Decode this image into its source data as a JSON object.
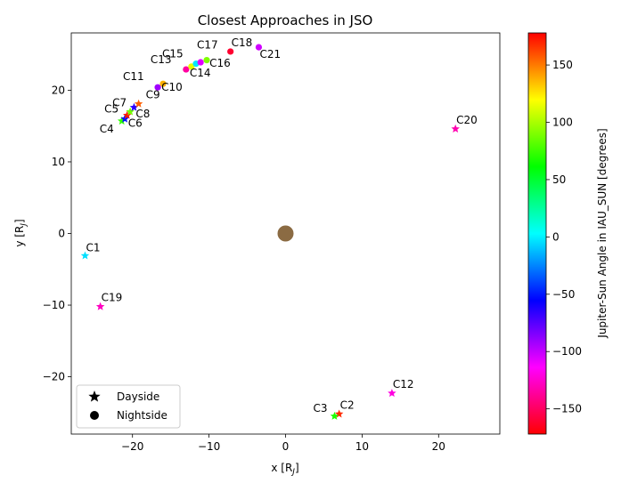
{
  "chart_data": {
    "type": "scatter",
    "title": "Closest Approaches in JSO",
    "xlabel_main": "x [R",
    "xlabel_sub": "J",
    "xlabel_end": "]",
    "ylabel_main": "y [R",
    "ylabel_sub": "J",
    "ylabel_end": "]",
    "xlim": [
      -28,
      28
    ],
    "ylim": [
      -28,
      28
    ],
    "xticks": [
      -20,
      -10,
      0,
      10,
      20
    ],
    "yticks": [
      -20,
      -10,
      0,
      10,
      20
    ],
    "grid": false,
    "legend": {
      "placement": "lower-left",
      "entries": [
        {
          "marker": "star",
          "label": "Dayside"
        },
        {
          "marker": "circle",
          "label": "Nightside"
        }
      ]
    },
    "colorbar": {
      "label": "Jupiter-Sun Angle in IAU_SUN [degrees]",
      "range": [
        -172,
        178
      ],
      "ticks": [
        -150,
        -100,
        -50,
        0,
        50,
        100,
        150
      ],
      "colormap": "hsv"
    },
    "jupiter": {
      "x": 0,
      "y": 0,
      "color": "#8B6B43"
    },
    "points": [
      {
        "label": "C1",
        "x": -26.2,
        "y": -3.1,
        "marker": "star",
        "angle": -5,
        "color": "#00e0ff"
      },
      {
        "label": "C2",
        "x": 7.0,
        "y": -25.2,
        "marker": "star",
        "angle": 170,
        "color": "#ff2a00"
      },
      {
        "label": "C3",
        "x": 6.4,
        "y": -25.5,
        "marker": "star",
        "angle": 60,
        "color": "#1aff00"
      },
      {
        "label": "C4",
        "x": -21.4,
        "y": 15.7,
        "marker": "star",
        "angle": 70,
        "color": "#30ff00"
      },
      {
        "label": "C5",
        "x": -21.0,
        "y": 16.0,
        "marker": "star",
        "angle": -65,
        "color": "#0010ff"
      },
      {
        "label": "C6",
        "x": -20.7,
        "y": 16.5,
        "marker": "star",
        "angle": 178,
        "color": "#ff1500"
      },
      {
        "label": "C7",
        "x": -20.3,
        "y": 17.0,
        "marker": "star",
        "angle": 90,
        "color": "#70ff00"
      },
      {
        "label": "C8",
        "x": -19.8,
        "y": 17.6,
        "marker": "star",
        "angle": -75,
        "color": "#2a00ff"
      },
      {
        "label": "C9",
        "x": -19.2,
        "y": 18.1,
        "marker": "star",
        "angle": 150,
        "color": "#ff6000"
      },
      {
        "label": "C10",
        "x": -16.0,
        "y": 20.9,
        "marker": "circle",
        "angle": 125,
        "color": "#ffb000"
      },
      {
        "label": "C11",
        "x": -16.7,
        "y": 20.4,
        "marker": "circle",
        "angle": -95,
        "color": "#a000ff"
      },
      {
        "label": "C12",
        "x": 13.9,
        "y": -22.3,
        "marker": "star",
        "angle": -125,
        "color": "#ff00e0"
      },
      {
        "label": "C13",
        "x": -13.0,
        "y": 22.9,
        "marker": "circle",
        "angle": -150,
        "color": "#ff00a0"
      },
      {
        "label": "C14",
        "x": -12.3,
        "y": 23.3,
        "marker": "circle",
        "angle": 110,
        "color": "#e0ff00"
      },
      {
        "label": "C15",
        "x": -11.7,
        "y": 23.7,
        "marker": "circle",
        "angle": 10,
        "color": "#00e8ff"
      },
      {
        "label": "C16",
        "x": -11.1,
        "y": 23.9,
        "marker": "circle",
        "angle": -110,
        "color": "#e000ff"
      },
      {
        "label": "C17",
        "x": -10.3,
        "y": 24.2,
        "marker": "circle",
        "angle": 80,
        "color": "#80ff00"
      },
      {
        "label": "C18",
        "x": -7.2,
        "y": 25.4,
        "marker": "circle",
        "angle": -165,
        "color": "#ff0030"
      },
      {
        "label": "C19",
        "x": -24.2,
        "y": -10.2,
        "marker": "star",
        "angle": -135,
        "color": "#ff00c0"
      },
      {
        "label": "C20",
        "x": 22.2,
        "y": 14.6,
        "marker": "star",
        "angle": -145,
        "color": "#ff00b0"
      },
      {
        "label": "C21",
        "x": -3.5,
        "y": 26.0,
        "marker": "circle",
        "angle": -110,
        "color": "#d000ff"
      }
    ]
  }
}
